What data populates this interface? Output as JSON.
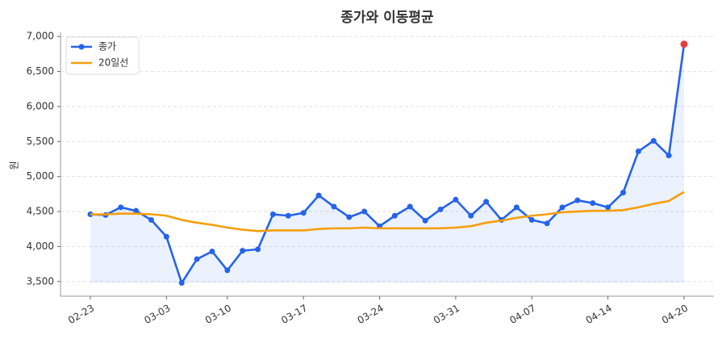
{
  "chart_data": {
    "type": "line",
    "title": "종가와 이동평균",
    "y_label": "원",
    "categories": [
      "02-23",
      null,
      null,
      null,
      null,
      "03-03",
      null,
      null,
      null,
      "03-10",
      null,
      null,
      null,
      null,
      "03-17",
      null,
      null,
      null,
      null,
      "03-24",
      null,
      null,
      null,
      null,
      "03-31",
      null,
      null,
      null,
      null,
      "04-07",
      null,
      null,
      null,
      null,
      "04-14",
      null,
      null,
      null,
      null,
      "04-20"
    ],
    "series": [
      {
        "name": "종가",
        "color": "#2563eb",
        "fill": true,
        "markers": true,
        "highlight_last_color": "#e53e3e",
        "values": [
          4460,
          4450,
          4560,
          4510,
          4380,
          4140,
          3480,
          3820,
          3930,
          3660,
          3940,
          3960,
          4460,
          4440,
          4480,
          4730,
          4570,
          4420,
          4500,
          4290,
          4440,
          4570,
          4370,
          4530,
          4670,
          4440,
          4640,
          4380,
          4560,
          4380,
          4330,
          4560,
          4660,
          4620,
          4560,
          4770,
          5360,
          5510,
          5300,
          6890
        ]
      },
      {
        "name": "20일선",
        "color": "#f59e0b",
        "values": [
          4460,
          4460,
          4470,
          4470,
          4460,
          4440,
          4380,
          4340,
          4310,
          4270,
          4240,
          4220,
          4230,
          4230,
          4230,
          4250,
          4260,
          4260,
          4270,
          4260,
          4260,
          4260,
          4260,
          4260,
          4270,
          4290,
          4340,
          4370,
          4410,
          4440,
          4460,
          4490,
          4500,
          4510,
          4510,
          4520,
          4560,
          4610,
          4650,
          4780
        ]
      }
    ],
    "ylim": [
      3290,
      7060
    ],
    "yticks": [
      {
        "value": 3500,
        "label": "3,500"
      },
      {
        "value": 4000,
        "label": "4,000"
      },
      {
        "value": 4500,
        "label": "4,500"
      },
      {
        "value": 5000,
        "label": "5,000"
      },
      {
        "value": 5500,
        "label": "5,500"
      },
      {
        "value": 6000,
        "label": "6,000"
      },
      {
        "value": 6500,
        "label": "6,500"
      },
      {
        "value": 7000,
        "label": "7,000"
      }
    ],
    "grid": true,
    "legend": "upper left"
  }
}
